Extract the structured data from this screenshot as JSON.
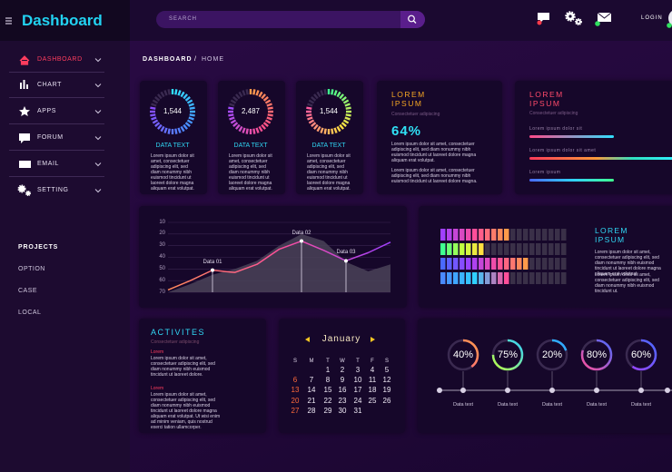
{
  "header": {
    "logo": "Dashboard",
    "search_placeholder": "SEARCH",
    "login": "LOGIN"
  },
  "sidebar": {
    "menu": [
      "DASHBOARD",
      "CHART",
      "APPS",
      "FORUM",
      "EMAIL",
      "SETTING"
    ],
    "projects_title": "PROJECTS",
    "projects": [
      "OPTION",
      "CASE",
      "LOCAL"
    ]
  },
  "breadcrumb": {
    "section": "DASHBOARD",
    "separator": "/",
    "page": "HOME"
  },
  "stat_cards": [
    {
      "value": "1,544",
      "label": "DATA TEXT",
      "text": "Lorem ipsum dolor sit amet, consectetuer adipiscing elit, sed diam nonummy nibh euismod tincidunt ut laoreet dolore magna aliquam erat volutpat."
    },
    {
      "value": "2,487",
      "label": "DATA TEXT",
      "text": "Lorem ipsum dolor sit amet, consectetuer adipiscing elit, sed diam nonummy nibh euismod tincidunt ut laoreet dolore magna aliquam erat volutpat."
    },
    {
      "value": "1,544",
      "label": "DATA TEXT",
      "text": "Lorem ipsum dolor sit amet, consectetuer adipiscing elit, sed diam nonummy nibh euismod tincidunt ut laoreet dolore magna aliquam erat volutpat."
    }
  ],
  "percent_card": {
    "title": "LOREM IPSUM",
    "subtitle": "Consectetuer adipiscing",
    "percent": "64%",
    "text": [
      "Lorem ipsum dolor sit amet, consectetuer adipiscing elit, sed diam nonummy nibh euismod tincidunt ut laoreet dolore magna aliquam erat volutpat.",
      "Lorem ipsum dolor sit amet, consectetuer adipiscing elit, sed diam nonummy nibh euismod tincidunt ut laoreet dolore magna."
    ]
  },
  "progress_card": {
    "title": "LOREM IPSUM",
    "subtitle": "Consectetuer adipiscing",
    "labels": [
      "Lorem ipsum dolor sit",
      "Lorem ipsum dolor sit amet",
      "Lorem ipsum"
    ]
  },
  "line_chart": {
    "ylim": [
      10,
      70
    ],
    "yticks": [
      10,
      20,
      30,
      40,
      50,
      60,
      70
    ],
    "line": [
      {
        "value": 68
      },
      {
        "value": 60
      },
      {
        "value": 51,
        "label": "Data 01"
      },
      {
        "value": 53
      },
      {
        "value": 46
      },
      {
        "value": 33
      },
      {
        "value": 26,
        "label": "Data 02"
      },
      {
        "value": 34
      },
      {
        "value": 43,
        "label": "Data 03"
      },
      {
        "value": 36
      },
      {
        "value": 27
      }
    ],
    "area": [
      70,
      63,
      55,
      50,
      43,
      30,
      20,
      26,
      44,
      52,
      46
    ]
  },
  "levels_card": {
    "title": "LOREM IPSUM",
    "text": [
      "Lorem ipsum dolor sit amet, consectetuer adipiscing elit, sed diam nonummy nibh euismod tincidunt ut laoreet dolore magna aliquam erat volutpat.",
      "Lorem ipsum dolor sit amet, consectetuer adipiscing elit, sed diam nonummy nibh euismod tincidunt ut."
    ]
  },
  "activities": {
    "title": "ACTIVITES",
    "subtitle": "Consectetuer adipiscing",
    "items": [
      {
        "tag": "Lorem",
        "text": "Lorem ipsum dolor sit amet, consectetuer adipiscing elit, sed diam nonummy nibh euismod tincidunt ut laoreet dolore."
      },
      {
        "tag": "Lorem",
        "text": "Lorem ipsum dolor sit amet, consectetuer adipiscing elit, sed diam nonummy nibh euismod tincidunt ut laoreet dolore magna aliquam erat volutpat. Ut wisi enim ad minim veniam, quis nostrud exerci tation ullamcorper."
      }
    ]
  },
  "calendar": {
    "month": "January",
    "weekdays": [
      "S",
      "M",
      "T",
      "W",
      "T",
      "F",
      "S"
    ],
    "weeks": [
      [
        null,
        null,
        1,
        2,
        3,
        4,
        5
      ],
      [
        6,
        7,
        8,
        9,
        10,
        11,
        12
      ],
      [
        13,
        14,
        15,
        16,
        17,
        18,
        19
      ],
      [
        20,
        21,
        22,
        23,
        24,
        25,
        26
      ],
      [
        27,
        28,
        29,
        30,
        31,
        null,
        null
      ]
    ]
  },
  "gauges": [
    {
      "value": 40,
      "value_label": "40%",
      "label": "Data text"
    },
    {
      "value": 75,
      "value_label": "75%",
      "label": "Data text"
    },
    {
      "value": 20,
      "value_label": "20%",
      "label": "Data text"
    },
    {
      "value": 80,
      "value_label": "80%",
      "label": "Data text"
    },
    {
      "value": 60,
      "value_label": "60%",
      "label": "Data text"
    }
  ]
}
